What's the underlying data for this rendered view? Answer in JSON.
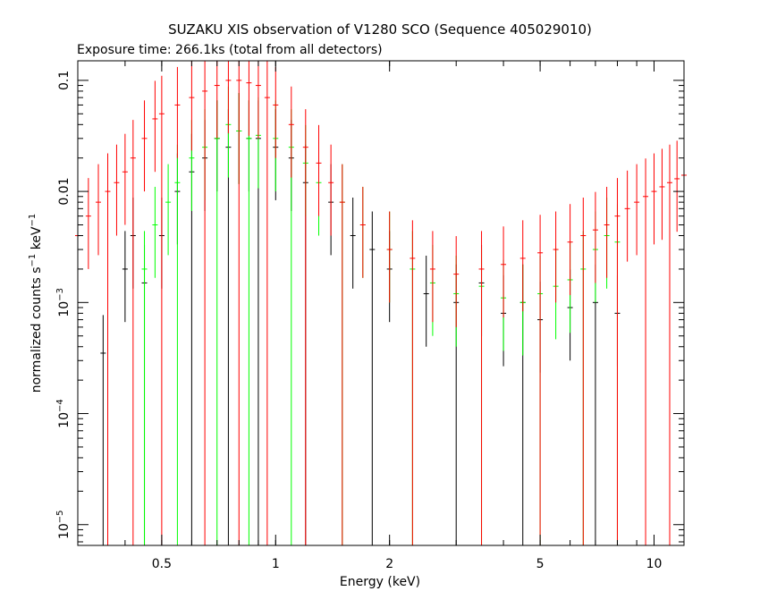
{
  "chart_data": {
    "type": "scatter",
    "title": "SUZAKU XIS observation of V1280 SCO (Sequence 405029010)",
    "subtitle": "Exposure time: 266.1ks (total from all detectors)",
    "xlabel": "Energy (keV)",
    "ylabel": {
      "main": "normalized counts s",
      "exp1": "−1",
      "mid": " keV",
      "exp2": "−1"
    },
    "xscale": "log",
    "yscale": "log",
    "xlim": [
      0.3,
      12
    ],
    "ylim": [
      6.5e-06,
      0.15
    ],
    "grid": false,
    "x_ticks": [
      "0.5",
      "1",
      "2",
      "5",
      "10"
    ],
    "x_tick_values": [
      0.5,
      1,
      2,
      5,
      10
    ],
    "y_ticks": [
      {
        "value": 0.1,
        "base": "0.1",
        "exp": ""
      },
      {
        "value": 0.01,
        "base": "0.01",
        "exp": ""
      },
      {
        "value": 0.001,
        "base": "10",
        "exp": "−3"
      },
      {
        "value": 0.0001,
        "base": "10",
        "exp": "−4"
      },
      {
        "value": 1e-05,
        "base": "10",
        "exp": "−5"
      }
    ],
    "series": [
      {
        "color": "#000000",
        "points": [
          [
            0.35,
            0.00035
          ],
          [
            0.4,
            0.002
          ],
          [
            0.42,
            0.004
          ],
          [
            0.45,
            0.0015
          ],
          [
            0.5,
            0.004
          ],
          [
            0.55,
            0.01
          ],
          [
            0.6,
            0.015
          ],
          [
            0.65,
            0.02
          ],
          [
            0.7,
            0.03
          ],
          [
            0.75,
            0.025
          ],
          [
            0.8,
            0.035
          ],
          [
            0.85,
            0.03
          ],
          [
            0.9,
            0.03
          ],
          [
            1.0,
            0.025
          ],
          [
            1.1,
            0.02
          ],
          [
            1.2,
            0.012
          ],
          [
            1.4,
            0.008
          ],
          [
            1.6,
            0.004
          ],
          [
            1.8,
            0.003
          ],
          [
            2.0,
            0.002
          ],
          [
            2.5,
            0.0012
          ],
          [
            3.0,
            0.001
          ],
          [
            3.5,
            0.0015
          ],
          [
            4.0,
            0.0008
          ],
          [
            4.5,
            0.001
          ],
          [
            5.0,
            0.0007
          ],
          [
            6.0,
            0.0009
          ],
          [
            7.0,
            0.001
          ],
          [
            8.0,
            0.0008
          ]
        ]
      },
      {
        "color": "#00ff00",
        "points": [
          [
            0.45,
            0.002
          ],
          [
            0.48,
            0.005
          ],
          [
            0.52,
            0.008
          ],
          [
            0.55,
            0.012
          ],
          [
            0.6,
            0.02
          ],
          [
            0.65,
            0.025
          ],
          [
            0.7,
            0.03
          ],
          [
            0.75,
            0.04
          ],
          [
            0.8,
            0.035
          ],
          [
            0.85,
            0.03
          ],
          [
            0.9,
            0.032
          ],
          [
            1.0,
            0.03
          ],
          [
            1.1,
            0.025
          ],
          [
            1.2,
            0.018
          ],
          [
            1.3,
            0.012
          ],
          [
            1.5,
            0.008
          ],
          [
            1.7,
            0.005
          ],
          [
            2.0,
            0.003
          ],
          [
            2.3,
            0.002
          ],
          [
            2.6,
            0.0015
          ],
          [
            3.0,
            0.0012
          ],
          [
            3.5,
            0.0014
          ],
          [
            4.0,
            0.0011
          ],
          [
            4.5,
            0.001
          ],
          [
            5.0,
            0.0012
          ],
          [
            5.5,
            0.0014
          ],
          [
            6.0,
            0.0016
          ],
          [
            6.5,
            0.002
          ],
          [
            7.0,
            0.003
          ],
          [
            7.5,
            0.004
          ],
          [
            8.0,
            0.0035
          ]
        ]
      },
      {
        "color": "#ff0000",
        "points": [
          [
            0.3,
            0.004
          ],
          [
            0.32,
            0.006
          ],
          [
            0.34,
            0.008
          ],
          [
            0.36,
            0.01
          ],
          [
            0.38,
            0.012
          ],
          [
            0.4,
            0.015
          ],
          [
            0.42,
            0.02
          ],
          [
            0.45,
            0.03
          ],
          [
            0.48,
            0.045
          ],
          [
            0.5,
            0.05
          ],
          [
            0.55,
            0.06
          ],
          [
            0.6,
            0.07
          ],
          [
            0.65,
            0.08
          ],
          [
            0.7,
            0.09
          ],
          [
            0.75,
            0.1
          ],
          [
            0.8,
            0.1
          ],
          [
            0.85,
            0.095
          ],
          [
            0.9,
            0.09
          ],
          [
            0.95,
            0.07
          ],
          [
            1.0,
            0.06
          ],
          [
            1.1,
            0.04
          ],
          [
            1.2,
            0.025
          ],
          [
            1.3,
            0.018
          ],
          [
            1.4,
            0.012
          ],
          [
            1.5,
            0.008
          ],
          [
            1.7,
            0.005
          ],
          [
            2.0,
            0.003
          ],
          [
            2.3,
            0.0025
          ],
          [
            2.6,
            0.002
          ],
          [
            3.0,
            0.0018
          ],
          [
            3.5,
            0.002
          ],
          [
            4.0,
            0.0022
          ],
          [
            4.5,
            0.0025
          ],
          [
            5.0,
            0.0028
          ],
          [
            5.5,
            0.003
          ],
          [
            6.0,
            0.0035
          ],
          [
            6.5,
            0.004
          ],
          [
            7.0,
            0.0045
          ],
          [
            7.5,
            0.005
          ],
          [
            8.0,
            0.006
          ],
          [
            8.5,
            0.007
          ],
          [
            9.0,
            0.008
          ],
          [
            9.5,
            0.009
          ],
          [
            10.0,
            0.01
          ],
          [
            10.5,
            0.011
          ],
          [
            11.0,
            0.012
          ],
          [
            11.5,
            0.013
          ],
          [
            12.0,
            0.014
          ]
        ]
      }
    ]
  }
}
